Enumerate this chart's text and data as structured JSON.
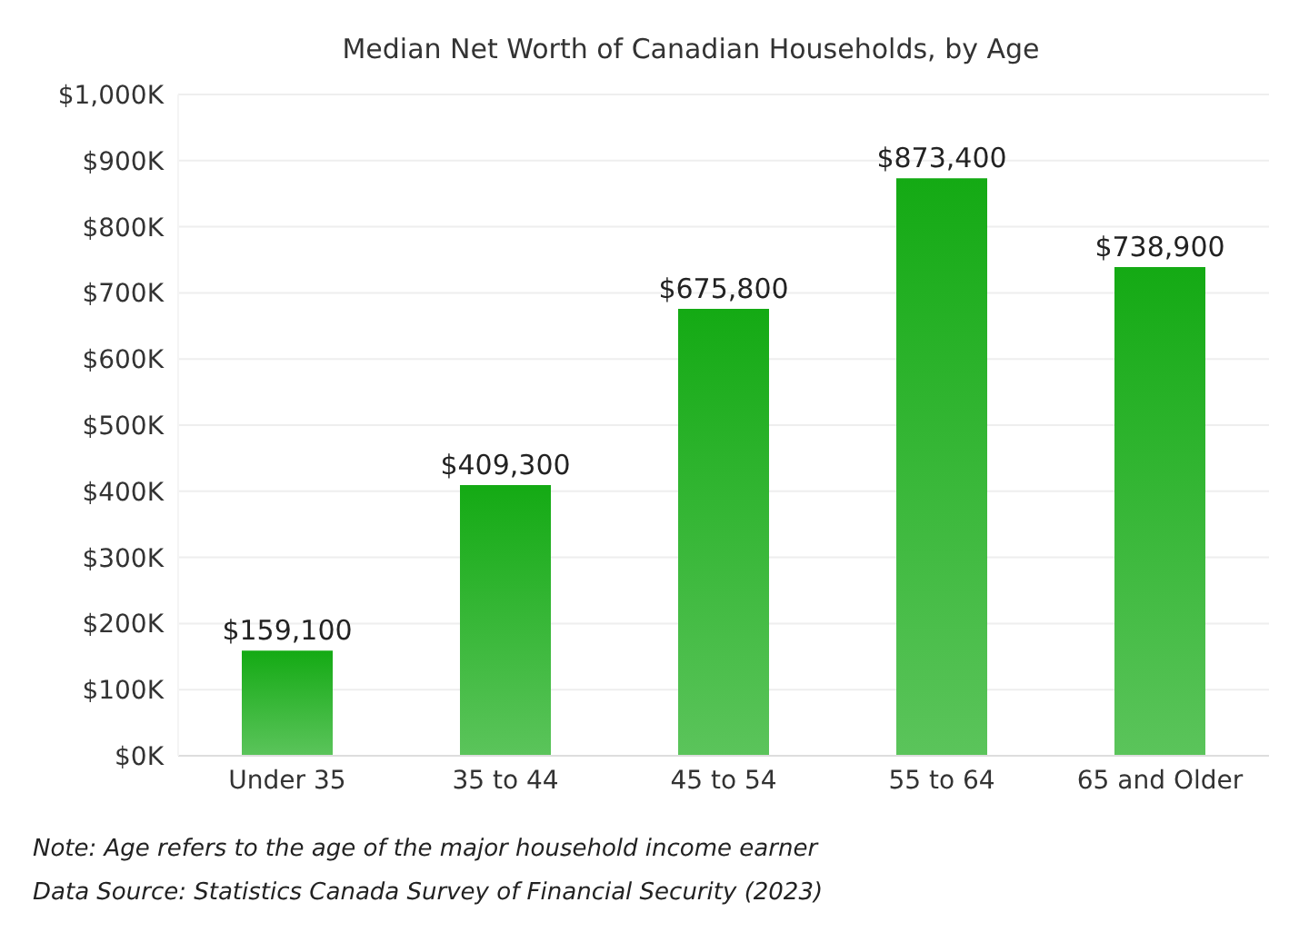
{
  "chart_data": {
    "type": "bar",
    "title": "Median Net Worth of Canadian Households, by Age",
    "categories": [
      "Under 35",
      "35 to 44",
      "45 to 54",
      "55 to 64",
      "65 and Older"
    ],
    "values": [
      159100,
      409300,
      675800,
      873400,
      738900
    ],
    "value_labels": [
      "$159,100",
      "$409,300",
      "$675,800",
      "$873,400",
      "$738,900"
    ],
    "color": "#14aa14",
    "ylim": [
      0,
      1000000
    ],
    "yticks": [
      {
        "value": 0,
        "label": "$0K"
      },
      {
        "value": 100000,
        "label": "$100K"
      },
      {
        "value": 200000,
        "label": "$200K"
      },
      {
        "value": 300000,
        "label": "$300K"
      },
      {
        "value": 400000,
        "label": "$400K"
      },
      {
        "value": 500000,
        "label": "$500K"
      },
      {
        "value": 600000,
        "label": "$600K"
      },
      {
        "value": 700000,
        "label": "$700K"
      },
      {
        "value": 800000,
        "label": "$800K"
      },
      {
        "value": 900000,
        "label": "$900K"
      },
      {
        "value": 1000000,
        "label": "$1,000K"
      }
    ],
    "grid": "y",
    "annotations": [
      "Note: Age refers to the age of the major household income earner",
      "Data Source: Statistics Canada Survey of Financial Security (2023)"
    ]
  }
}
